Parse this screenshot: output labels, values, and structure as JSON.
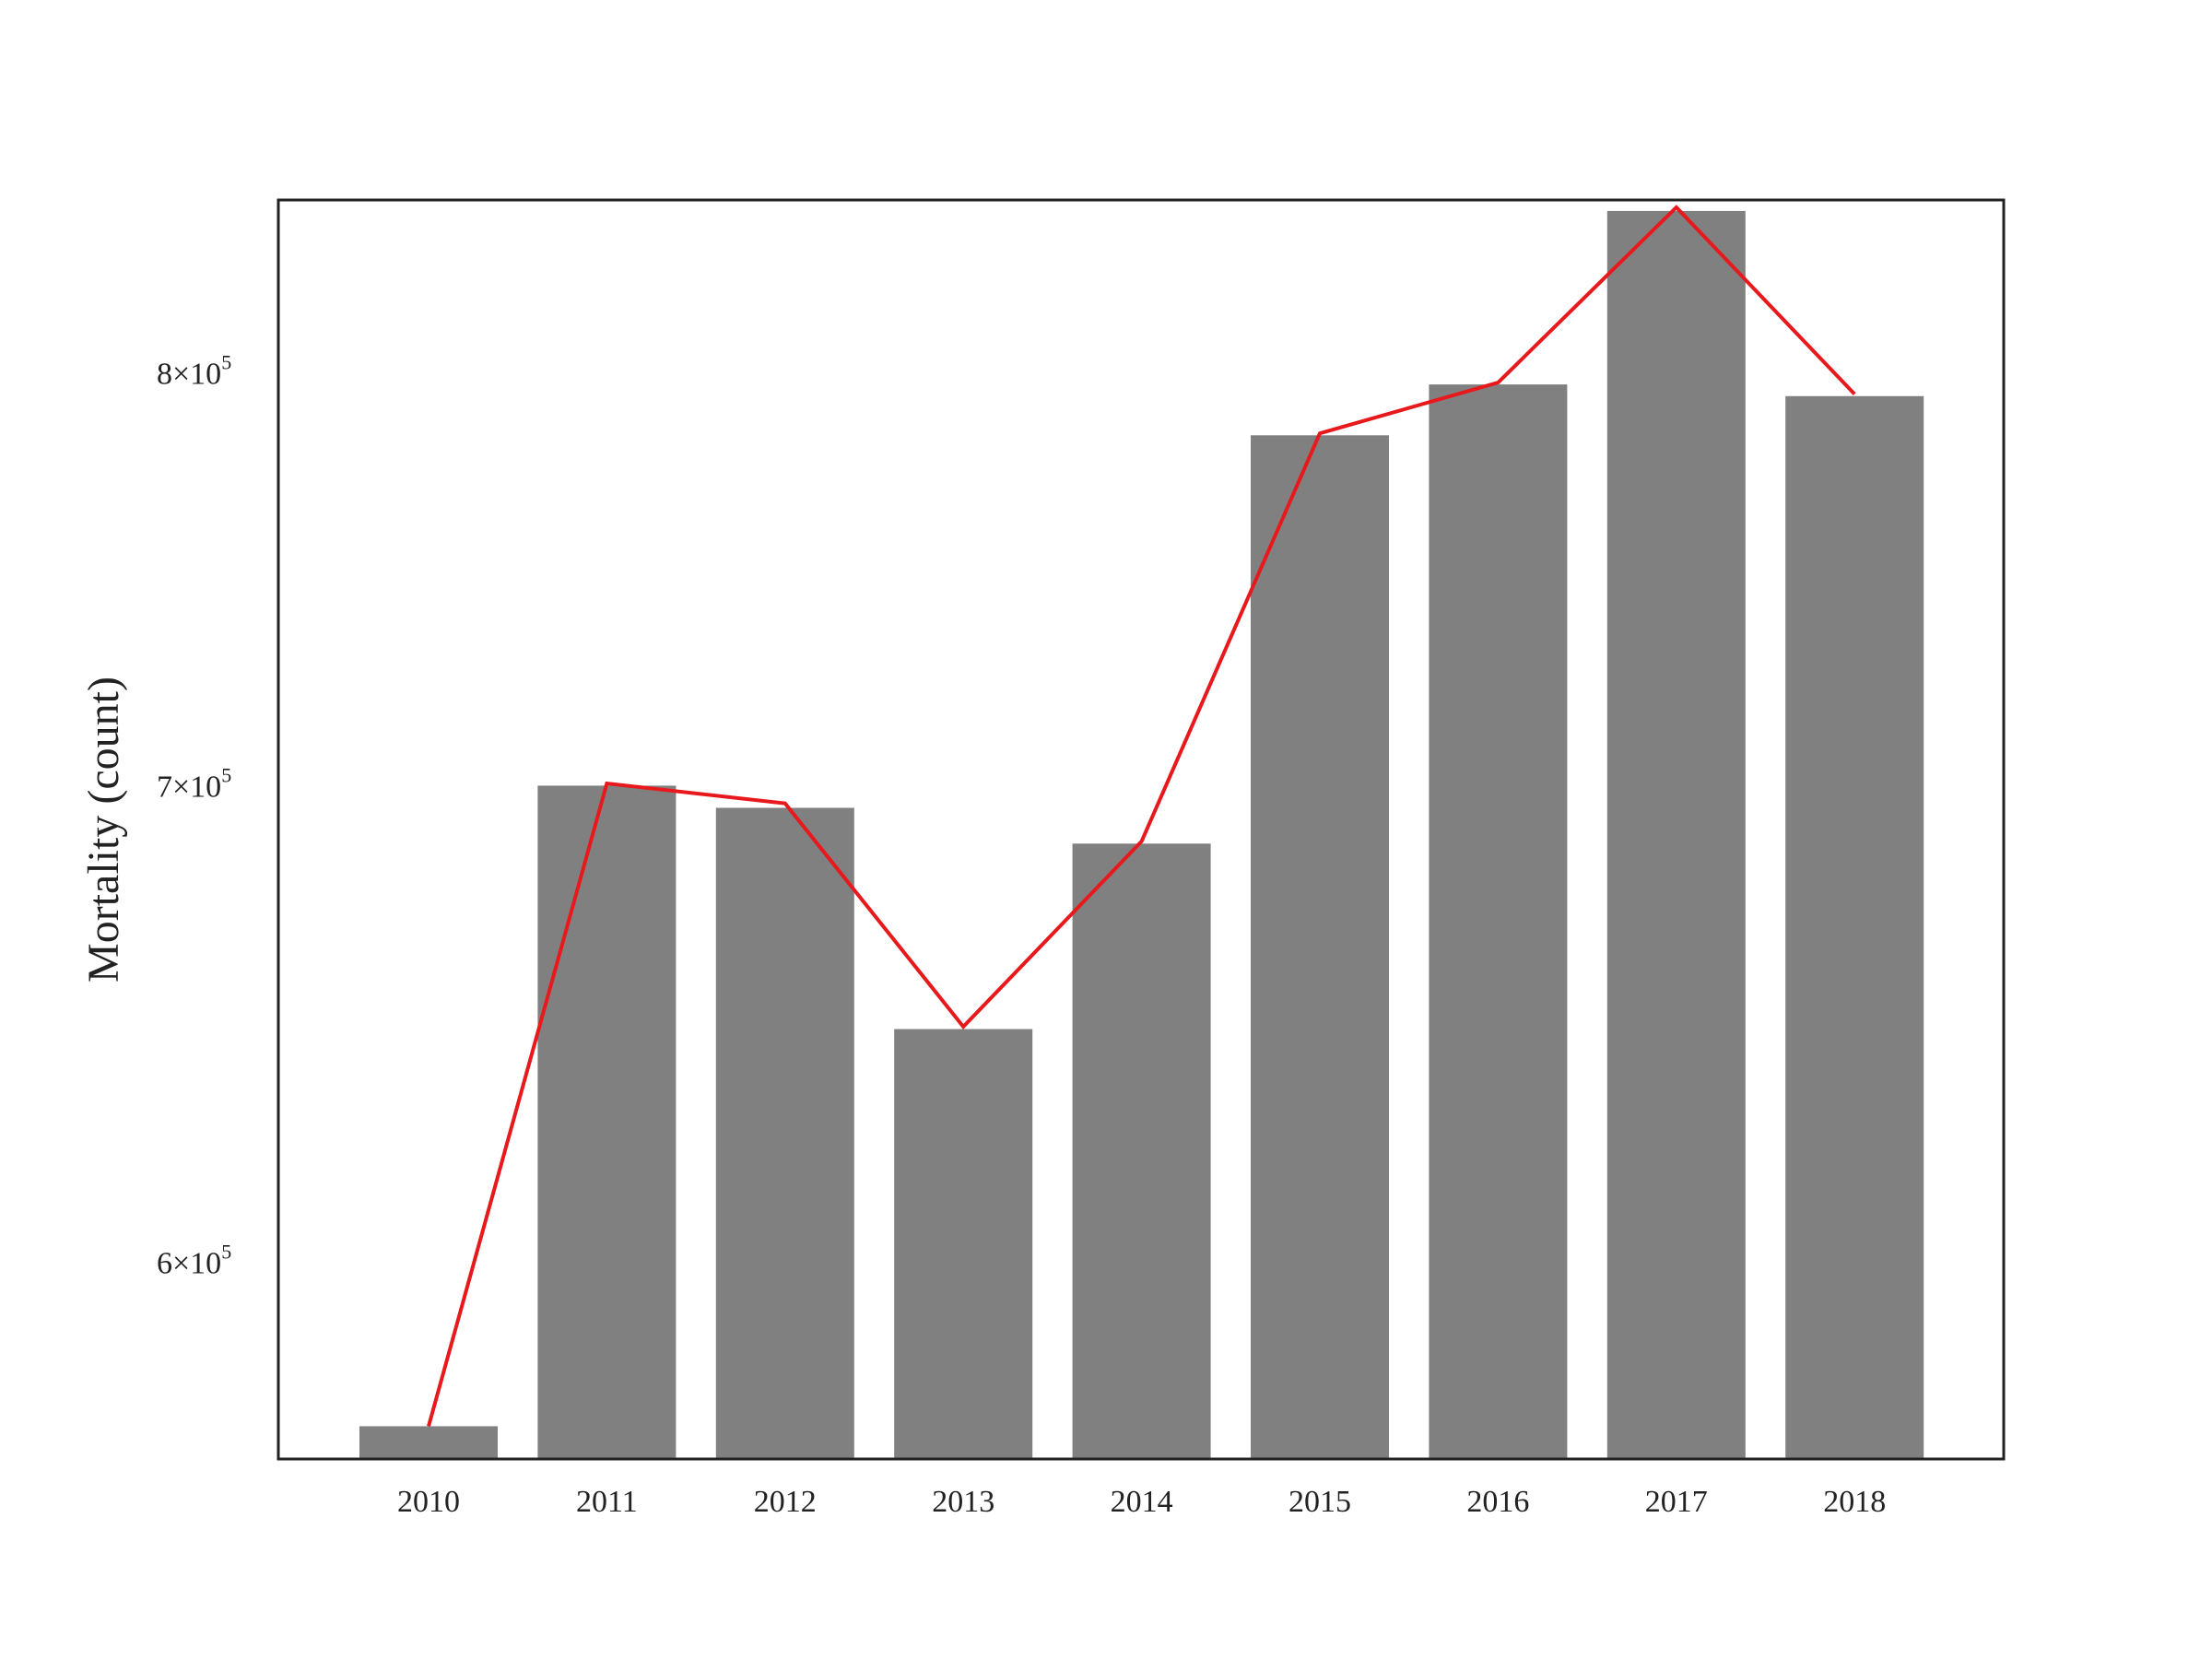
{
  "chart_data": {
    "type": "bar",
    "title": "",
    "xlabel": "",
    "ylabel": "Mortality (count)",
    "yscale": "log",
    "ylim": [
      563000,
      846000
    ],
    "grid": false,
    "categories": [
      "2010",
      "2011",
      "2012",
      "2013",
      "2014",
      "2015",
      "2016",
      "2017",
      "2018"
    ],
    "yticks": [
      {
        "value": 600000,
        "mantissa": "6",
        "base": "10",
        "exponent": "5"
      },
      {
        "value": 700000,
        "mantissa": "7",
        "base": "10",
        "exponent": "5"
      },
      {
        "value": 800000,
        "mantissa": "8",
        "base": "10",
        "exponent": "5"
      }
    ],
    "series": [
      {
        "type": "bar",
        "values": [
          569000,
          700000,
          695000,
          647000,
          687000,
          784000,
          797000,
          843000,
          794000
        ]
      },
      {
        "type": "line",
        "values": [
          569000,
          700500,
          696000,
          647500,
          687500,
          784500,
          797500,
          844000,
          794500
        ]
      }
    ],
    "colors": {
      "bar": "#808080",
      "line": "#e8191c",
      "frame": "#222222"
    }
  }
}
